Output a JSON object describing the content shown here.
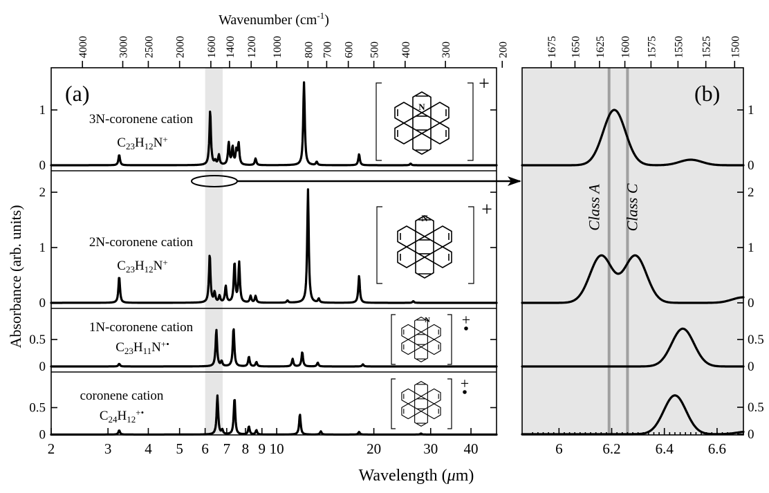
{
  "figure": {
    "top_axis_label": "Wavenumber (cm",
    "top_axis_sup": "-1",
    "top_axis_close": ")",
    "bottom_axis_label_a": "Wavelength (",
    "bottom_axis_mu": "μ",
    "bottom_axis_label_b": "m)",
    "y_axis_label": "Absorbance (arb. units)",
    "arrow_color": "#000000",
    "highlight_color": "#e6e6e6",
    "class_line_color": "#a0a0a0"
  },
  "chart_data": [
    {
      "panel_label": "(a)",
      "type": "line",
      "x_scale": "log",
      "xlim": [
        2,
        48
      ],
      "xticks": [
        2,
        3,
        4,
        5,
        6,
        7,
        8,
        9,
        10,
        20,
        30,
        40
      ],
      "xtick_labels": [
        "2",
        "3",
        "4",
        "5",
        "6",
        "7",
        "8",
        "9",
        "10",
        "20",
        "30",
        "40"
      ],
      "xlabel": "Wavelength (μm)",
      "secondary_xaxis": {
        "label": "Wavenumber (cm-1)",
        "ticks": [
          4000,
          3000,
          2500,
          2000,
          1600,
          1400,
          1200,
          1000,
          800,
          700,
          600,
          500,
          400,
          300,
          200
        ],
        "tick_labels": [
          "4000",
          "3000",
          "2500",
          "2000",
          "1600",
          "1400",
          "1200",
          "1000",
          "800",
          "700",
          "600",
          "500",
          "400",
          "300",
          "200"
        ]
      },
      "highlight_band_um": [
        6.0,
        6.8
      ],
      "series": [
        {
          "name": "3N-coronene cation",
          "formula_base": "C",
          "formula_sub1": "23",
          "formula_mid": "H",
          "formula_sub2": "12",
          "formula_tail": "N",
          "formula_charge": "+",
          "charge_label": "+",
          "yticks": [
            0,
            1
          ],
          "ylim": [
            -0.05,
            1.65
          ],
          "peaks": [
            [
              3.25,
              0.19
            ],
            [
              6.22,
              0.99
            ],
            [
              6.45,
              0.07
            ],
            [
              6.62,
              0.18
            ],
            [
              7.1,
              0.4
            ],
            [
              7.3,
              0.32
            ],
            [
              7.5,
              0.25
            ],
            [
              7.62,
              0.38
            ],
            [
              8.6,
              0.12
            ],
            [
              12.15,
              1.5
            ],
            [
              13.3,
              0.06
            ],
            [
              18.0,
              0.2
            ],
            [
              26.0,
              0.03
            ]
          ]
        },
        {
          "name": "2N-coronene cation",
          "formula_base": "C",
          "formula_sub1": "23",
          "formula_mid": "H",
          "formula_sub2": "12",
          "formula_tail": "N",
          "formula_charge": "+",
          "charge_label": "+",
          "yticks": [
            0,
            1,
            2
          ],
          "ylim": [
            -0.05,
            2.5
          ],
          "peaks": [
            [
              3.25,
              0.48
            ],
            [
              6.2,
              0.88
            ],
            [
              6.42,
              0.18
            ],
            [
              6.65,
              0.12
            ],
            [
              6.95,
              0.3
            ],
            [
              7.4,
              0.72
            ],
            [
              7.65,
              0.72
            ],
            [
              8.3,
              0.12
            ],
            [
              8.6,
              0.12
            ],
            [
              10.8,
              0.04
            ],
            [
              12.5,
              2.05
            ],
            [
              13.5,
              0.07
            ],
            [
              18.0,
              0.49
            ],
            [
              26.5,
              0.03
            ]
          ]
        },
        {
          "name": "1N-coronene cation",
          "formula_base": "C",
          "formula_sub1": "23",
          "formula_mid": "H",
          "formula_sub2": "11",
          "formula_tail": "N",
          "formula_charge": "+•",
          "charge_label": "+",
          "yticks": [
            0,
            0.5
          ],
          "ylim": [
            -0.05,
            0.95
          ],
          "peaks": [
            [
              3.25,
              0.05
            ],
            [
              6.5,
              0.68
            ],
            [
              6.75,
              0.09
            ],
            [
              7.35,
              0.72
            ],
            [
              8.2,
              0.18
            ],
            [
              8.65,
              0.08
            ],
            [
              11.2,
              0.14
            ],
            [
              12.0,
              0.27
            ],
            [
              13.4,
              0.07
            ],
            [
              18.5,
              0.04
            ]
          ]
        },
        {
          "name": "coronene cation",
          "formula_base": "C",
          "formula_sub1": "24",
          "formula_mid": "H",
          "formula_sub2": "12",
          "formula_tail": "",
          "formula_charge": "+•",
          "charge_label": "+",
          "yticks": [
            0,
            0.5
          ],
          "ylim": [
            -0.05,
            0.95
          ],
          "peaks": [
            [
              3.25,
              0.08
            ],
            [
              6.55,
              0.72
            ],
            [
              6.78,
              0.08
            ],
            [
              7.4,
              0.68
            ],
            [
              8.2,
              0.15
            ],
            [
              8.65,
              0.08
            ],
            [
              11.8,
              0.38
            ],
            [
              13.7,
              0.06
            ],
            [
              18.0,
              0.05
            ],
            [
              28.0,
              0.02
            ]
          ]
        }
      ]
    },
    {
      "panel_label": "(b)",
      "type": "line",
      "xlim": [
        5.86,
        6.7
      ],
      "xticks": [
        6.0,
        6.2,
        6.4,
        6.6
      ],
      "xtick_labels": [
        "6",
        "6.2",
        "6.4",
        "6.6"
      ],
      "secondary_xaxis": {
        "ticks": [
          1675,
          1650,
          1625,
          1600,
          1575,
          1550,
          1525,
          1500
        ],
        "tick_labels": [
          "1675",
          "1650",
          "1625",
          "1600",
          "1575",
          "1550",
          "1525",
          "1500"
        ]
      },
      "class_lines": [
        {
          "label": "Class A",
          "x_um": 6.19
        },
        {
          "label": "Class C",
          "x_um": 6.26
        }
      ],
      "series": [
        {
          "name": "3N-coronene cation",
          "yticks": [
            0,
            1
          ],
          "ytick_labels": [
            "0",
            "1"
          ],
          "peaks": [
            [
              6.21,
              1.0
            ],
            [
              6.5,
              0.1
            ]
          ]
        },
        {
          "name": "2N-coronene cation",
          "yticks": [
            0,
            1,
            2
          ],
          "ytick_labels": [
            "0",
            "1",
            "2"
          ],
          "peaks": [
            [
              6.16,
              0.85
            ],
            [
              6.29,
              0.85
            ],
            [
              6.7,
              0.1
            ]
          ]
        },
        {
          "name": "1N-coronene cation",
          "yticks": [
            0,
            0.5
          ],
          "ytick_labels": [
            "0",
            "0.5"
          ],
          "peaks": [
            [
              6.47,
              0.7
            ]
          ]
        },
        {
          "name": "coronene cation",
          "yticks": [
            0,
            0.5
          ],
          "ytick_labels": [
            "0",
            "0.5"
          ],
          "peaks": [
            [
              6.44,
              0.72
            ],
            [
              6.72,
              0.05
            ]
          ]
        }
      ]
    }
  ]
}
